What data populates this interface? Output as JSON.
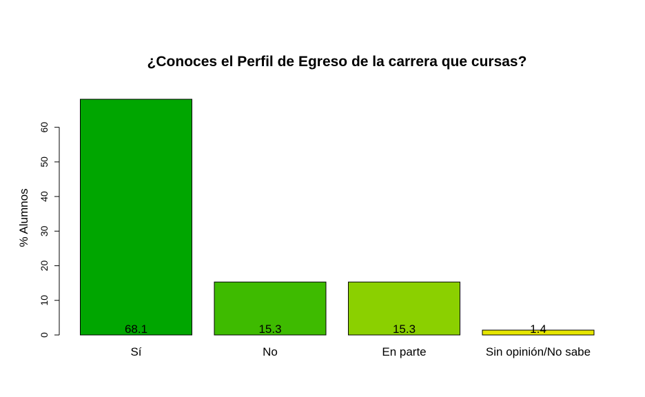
{
  "chart_data": {
    "type": "bar",
    "title": "¿Conoces el Perfil de Egreso de la carrera que cursas?",
    "xlabel": "",
    "ylabel": "% Alumnos",
    "categories": [
      "Sí",
      "No",
      "En parte",
      "Sin opinión/No sabe"
    ],
    "values": [
      68.1,
      15.3,
      15.3,
      1.4
    ],
    "data_labels": [
      "68.1",
      "15.3",
      "15.3",
      "1.4"
    ],
    "colors": [
      "#00A600",
      "#3EBB00",
      "#8BD000",
      "#E6E600"
    ],
    "yticks": [
      0,
      10,
      20,
      30,
      40,
      50,
      60
    ],
    "ylim": [
      0,
      68.1
    ],
    "grid": false,
    "legend": "none"
  }
}
